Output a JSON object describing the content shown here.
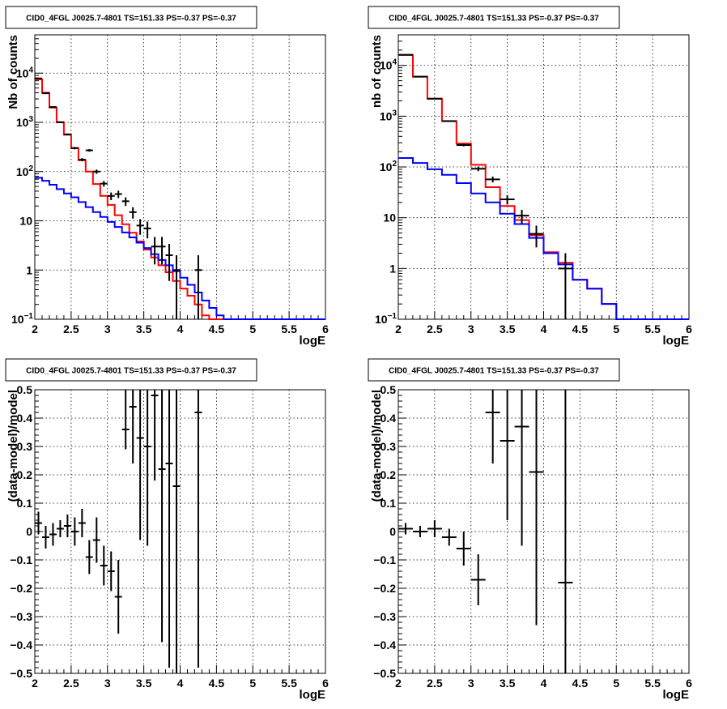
{
  "chart_data": [
    {
      "type": "histogram",
      "title": "CID0_4FGL J0025.7-4801 TS=151.33 PS=-0.37 PS=-0.37",
      "xlabel": "logE",
      "ylabel": "Nb of counts",
      "xlim": [
        2,
        6
      ],
      "ylim": [
        0.1,
        60000
      ],
      "yscale": "log",
      "grid": true,
      "x_ticks": [
        "2",
        "2.5",
        "3",
        "3.5",
        "4",
        "4.5",
        "5",
        "5.5",
        "6"
      ],
      "y_ticks": [
        {
          "v": 0.1,
          "label": "10",
          "exp": "−1"
        },
        {
          "v": 1,
          "label": "1",
          "exp": ""
        },
        {
          "v": 10,
          "label": "10",
          "exp": ""
        },
        {
          "v": 100,
          "label": "10",
          "exp": "2"
        },
        {
          "v": 1000,
          "label": "10",
          "exp": "3"
        },
        {
          "v": 10000,
          "label": "10",
          "exp": "4"
        }
      ],
      "bin_edges": [
        2.0,
        2.1,
        2.2,
        2.3,
        2.4,
        2.5,
        2.6,
        2.7,
        2.8,
        2.9,
        3.0,
        3.1,
        3.2,
        3.3,
        3.4,
        3.5,
        3.6,
        3.7,
        3.8,
        3.9,
        4.0,
        4.1,
        4.2,
        4.3,
        4.4,
        4.5,
        4.6,
        4.7,
        4.8,
        4.9,
        5.0,
        5.1,
        5.2,
        5.3,
        5.4,
        5.5,
        5.6,
        5.7,
        5.8,
        5.9,
        6.0
      ],
      "series": [
        {
          "kind": "step",
          "color": "#ff0000",
          "values": [
            7500,
            4000,
            2000,
            1000,
            560,
            300,
            170,
            100,
            56,
            32,
            21,
            13,
            8.5,
            5.7,
            3.8,
            2.6,
            1.8,
            1.25,
            0.9,
            0.6,
            0.42,
            0.3,
            0.2,
            0.12,
            0.1,
            0.1,
            0.1,
            0.1,
            0.1,
            0.1,
            0.1,
            0.1,
            0.1,
            0.1,
            0.1,
            0.1,
            0.1,
            0.1,
            0.1,
            0.1
          ]
        },
        {
          "kind": "step",
          "color": "#0000ff",
          "values": [
            75,
            65,
            54,
            44,
            36,
            30,
            24,
            19,
            15,
            12,
            9.5,
            7.5,
            5.8,
            4.6,
            3.6,
            2.8,
            2.1,
            1.6,
            1.25,
            0.95,
            0.7,
            0.5,
            0.35,
            0.24,
            0.17,
            0.12,
            0.1,
            0.1,
            0.1,
            0.1,
            0.1,
            0.1,
            0.1,
            0.1,
            0.1,
            0.1,
            0.1,
            0.1,
            0.1,
            0.1
          ]
        },
        {
          "kind": "points",
          "color": "#000000",
          "x": [
            2.05,
            2.15,
            2.25,
            2.35,
            2.45,
            2.55,
            2.65,
            2.75,
            2.85,
            2.95,
            3.05,
            3.15,
            3.25,
            3.35,
            3.45,
            3.55,
            3.65,
            3.75,
            3.85,
            3.95,
            4.25
          ],
          "y": [
            7800,
            3900,
            2050,
            1010,
            570,
            300,
            175,
            270,
            100,
            57,
            32,
            35,
            25,
            15,
            8,
            7,
            3,
            3,
            2,
            1,
            1
          ],
          "err_lo": [
            90,
            65,
            45,
            32,
            24,
            17,
            13,
            16,
            10,
            7.5,
            5.7,
            6,
            5,
            3.9,
            2.8,
            2.6,
            1.7,
            1.7,
            1.4,
            0.95,
            0.95
          ],
          "err_hi": [
            90,
            65,
            45,
            32,
            24,
            17,
            13,
            16,
            10,
            7.5,
            5.7,
            6,
            5,
            3.9,
            2.8,
            2.6,
            1.7,
            1.7,
            1.4,
            1,
            1
          ]
        }
      ]
    },
    {
      "type": "histogram",
      "title": "CID0_4FGL J0025.7-4801 TS=151.33 PS=-0.37 PS=-0.37",
      "xlabel": "logE",
      "ylabel": "nb of counts",
      "xlim": [
        2,
        6
      ],
      "ylim": [
        0.1,
        40000
      ],
      "yscale": "log",
      "grid": true,
      "x_ticks": [
        "2",
        "2.5",
        "3",
        "3.5",
        "4",
        "4.5",
        "5",
        "5.5",
        "6"
      ],
      "y_ticks": [
        {
          "v": 0.1,
          "label": "10",
          "exp": "−1"
        },
        {
          "v": 1,
          "label": "1",
          "exp": ""
        },
        {
          "v": 10,
          "label": "10",
          "exp": ""
        },
        {
          "v": 100,
          "label": "10",
          "exp": "2"
        },
        {
          "v": 1000,
          "label": "10",
          "exp": "3"
        },
        {
          "v": 10000,
          "label": "10",
          "exp": "4"
        }
      ],
      "bin_edges": [
        2.0,
        2.2,
        2.4,
        2.6,
        2.8,
        3.0,
        3.2,
        3.4,
        3.6,
        3.8,
        4.0,
        4.2,
        4.4,
        4.6,
        4.8,
        5.0,
        5.2,
        5.4,
        5.6,
        5.8,
        6.0
      ],
      "series": [
        {
          "kind": "step",
          "color": "#ff0000",
          "values": [
            16000,
            6000,
            2200,
            800,
            290,
            110,
            40,
            17,
            9,
            4.5,
            2.1,
            1.3,
            0.6,
            0.4,
            0.2,
            0.1,
            0.1,
            0.1,
            0.1,
            0.1
          ]
        },
        {
          "kind": "step",
          "color": "#0000ff",
          "values": [
            150,
            120,
            90,
            70,
            48,
            30,
            20,
            12,
            7.5,
            4,
            2,
            1.2,
            0.6,
            0.4,
            0.2,
            0.1,
            0.1,
            0.1,
            0.1,
            0.1
          ]
        },
        {
          "kind": "points",
          "color": "#000000",
          "x": [
            2.1,
            2.3,
            2.5,
            2.7,
            2.9,
            3.1,
            3.3,
            3.5,
            3.7,
            3.9,
            4.3
          ],
          "y": [
            16200,
            6000,
            2210,
            800,
            270,
            92,
            57,
            23,
            11,
            4.8,
            1
          ],
          "err_lo": [
            127,
            77,
            47,
            28,
            16,
            9.6,
            7.5,
            4.8,
            3.3,
            2.2,
            0.95
          ],
          "err_hi": [
            127,
            77,
            47,
            28,
            16,
            9.6,
            7.5,
            4.8,
            3.3,
            2.2,
            1
          ]
        }
      ]
    },
    {
      "type": "scatter",
      "title": "CID0_4FGL J0025.7-4801 TS=151.33 PS=-0.37 PS=-0.37",
      "xlabel": "logE",
      "ylabel": "(data-model)/model",
      "xlim": [
        2,
        6
      ],
      "ylim": [
        -0.5,
        0.5
      ],
      "grid": true,
      "x_ticks": [
        "2",
        "2.5",
        "3",
        "3.5",
        "4",
        "4.5",
        "5",
        "5.5",
        "6"
      ],
      "y_ticks": [
        "−0.5",
        "−0.4",
        "−0.3",
        "−0.2",
        "−0.1",
        "0",
        "0.1",
        "0.2",
        "0.3",
        "0.4",
        "0.5"
      ],
      "series": [
        {
          "kind": "points",
          "color": "#000000",
          "xerr": 0.05,
          "x": [
            2.05,
            2.15,
            2.25,
            2.35,
            2.45,
            2.55,
            2.65,
            2.75,
            2.85,
            2.95,
            3.05,
            3.15,
            3.25,
            3.35,
            3.45,
            3.55,
            3.65,
            3.75,
            3.85,
            3.95,
            4.25
          ],
          "y": [
            0.03,
            -0.02,
            -0.01,
            0.01,
            0.02,
            0.0,
            0.03,
            -0.09,
            -0.03,
            -0.12,
            -0.14,
            -0.23,
            0.36,
            0.44,
            0.33,
            0.3,
            0.48,
            0.22,
            0.24,
            0.16,
            0.42
          ],
          "err_lo": [
            0.04,
            0.04,
            0.04,
            0.03,
            0.04,
            0.05,
            0.05,
            0.06,
            0.08,
            0.07,
            0.07,
            0.13,
            0.07,
            0.2,
            0.36,
            0.35,
            0.3,
            0.61,
            0.72,
            0.66,
            0.9
          ],
          "err_hi": [
            0.04,
            0.04,
            0.04,
            0.03,
            0.04,
            0.05,
            0.05,
            0.06,
            0.08,
            0.07,
            0.07,
            0.13,
            0.2,
            0.2,
            0.3,
            0.3,
            0.3,
            0.35,
            0.35,
            0.35,
            0.3
          ]
        }
      ]
    },
    {
      "type": "scatter",
      "title": "CID0_4FGL J0025.7-4801 TS=151.33 PS=-0.37 PS=-0.37",
      "xlabel": "logE",
      "ylabel": "(data-model)/model",
      "xlim": [
        2,
        6
      ],
      "ylim": [
        -0.5,
        0.5
      ],
      "grid": true,
      "x_ticks": [
        "2",
        "2.5",
        "3",
        "3.5",
        "4",
        "4.5",
        "5",
        "5.5",
        "6"
      ],
      "y_ticks": [
        "−0.5",
        "−0.4",
        "−0.3",
        "−0.2",
        "−0.1",
        "0",
        "0.1",
        "0.2",
        "0.3",
        "0.4",
        "0.5"
      ],
      "series": [
        {
          "kind": "points",
          "color": "#000000",
          "xerr": 0.1,
          "x": [
            2.1,
            2.3,
            2.5,
            2.7,
            2.9,
            3.1,
            3.3,
            3.5,
            3.7,
            3.9,
            4.3
          ],
          "y": [
            0.01,
            0.0,
            0.01,
            -0.02,
            -0.06,
            -0.17,
            0.42,
            0.32,
            0.37,
            0.21,
            -0.18
          ],
          "err_lo": [
            0.02,
            0.02,
            0.03,
            0.03,
            0.06,
            0.09,
            0.18,
            0.28,
            0.42,
            0.54,
            0.82
          ],
          "err_hi": [
            0.02,
            0.02,
            0.03,
            0.03,
            0.06,
            0.09,
            0.2,
            0.3,
            0.3,
            0.3,
            0.7
          ]
        }
      ]
    }
  ]
}
